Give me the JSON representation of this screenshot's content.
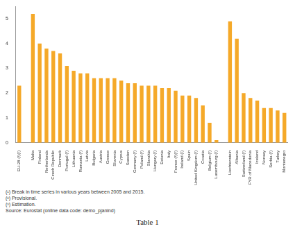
{
  "chart_data": {
    "type": "bar",
    "categories": [
      "EU-28 (¹)(²)",
      null,
      "Malta",
      "Finland",
      "Netherlands",
      "Czech Republic",
      "Denmark",
      "Portugal (¹)",
      "Lithuania",
      "Romania (¹)",
      "Latvia",
      "Bulgaria",
      "Austria",
      "Greece",
      "Slovenia",
      "Cyprus",
      "Sweden",
      "Germany (¹)",
      "Poland (¹)",
      "Slovakia",
      "Hungary (¹)",
      "Estonia",
      "Italy",
      "France (¹)(²)",
      "Ireland (²)",
      "Spain",
      "United Kingdom (¹)",
      "Croatia",
      "Belgium (²)",
      "Luxembourg (¹)",
      null,
      "Liechtenstein",
      "Albania",
      "Switzerland (²)",
      "FYR of Macedonia",
      "Iceland",
      "Norway",
      "Serbia (¹)",
      "Turkey",
      "Montenegro"
    ],
    "values": [
      2.3,
      null,
      5.2,
      4.0,
      3.8,
      3.7,
      3.6,
      3.1,
      2.9,
      2.8,
      2.8,
      2.6,
      2.6,
      2.6,
      2.6,
      2.5,
      2.4,
      2.4,
      2.3,
      2.3,
      2.3,
      2.2,
      2.2,
      2.1,
      1.9,
      1.9,
      1.8,
      1.5,
      0.8,
      0.1,
      null,
      4.9,
      4.2,
      2.0,
      1.8,
      1.7,
      1.4,
      1.4,
      1.3,
      1.2
    ],
    "color": "#f5a929",
    "ylim": [
      0,
      5.5
    ],
    "yticks": [
      0,
      1,
      2,
      3,
      4,
      5
    ],
    "grid": false,
    "notes": [
      "(¹) Break in time series in various years between 2005 and 2015.",
      "(²) Provisional.",
      "(³) Estimation.",
      "Source: Eurostat (online data code: demo_pjanind)"
    ]
  },
  "caption": "Table 1"
}
